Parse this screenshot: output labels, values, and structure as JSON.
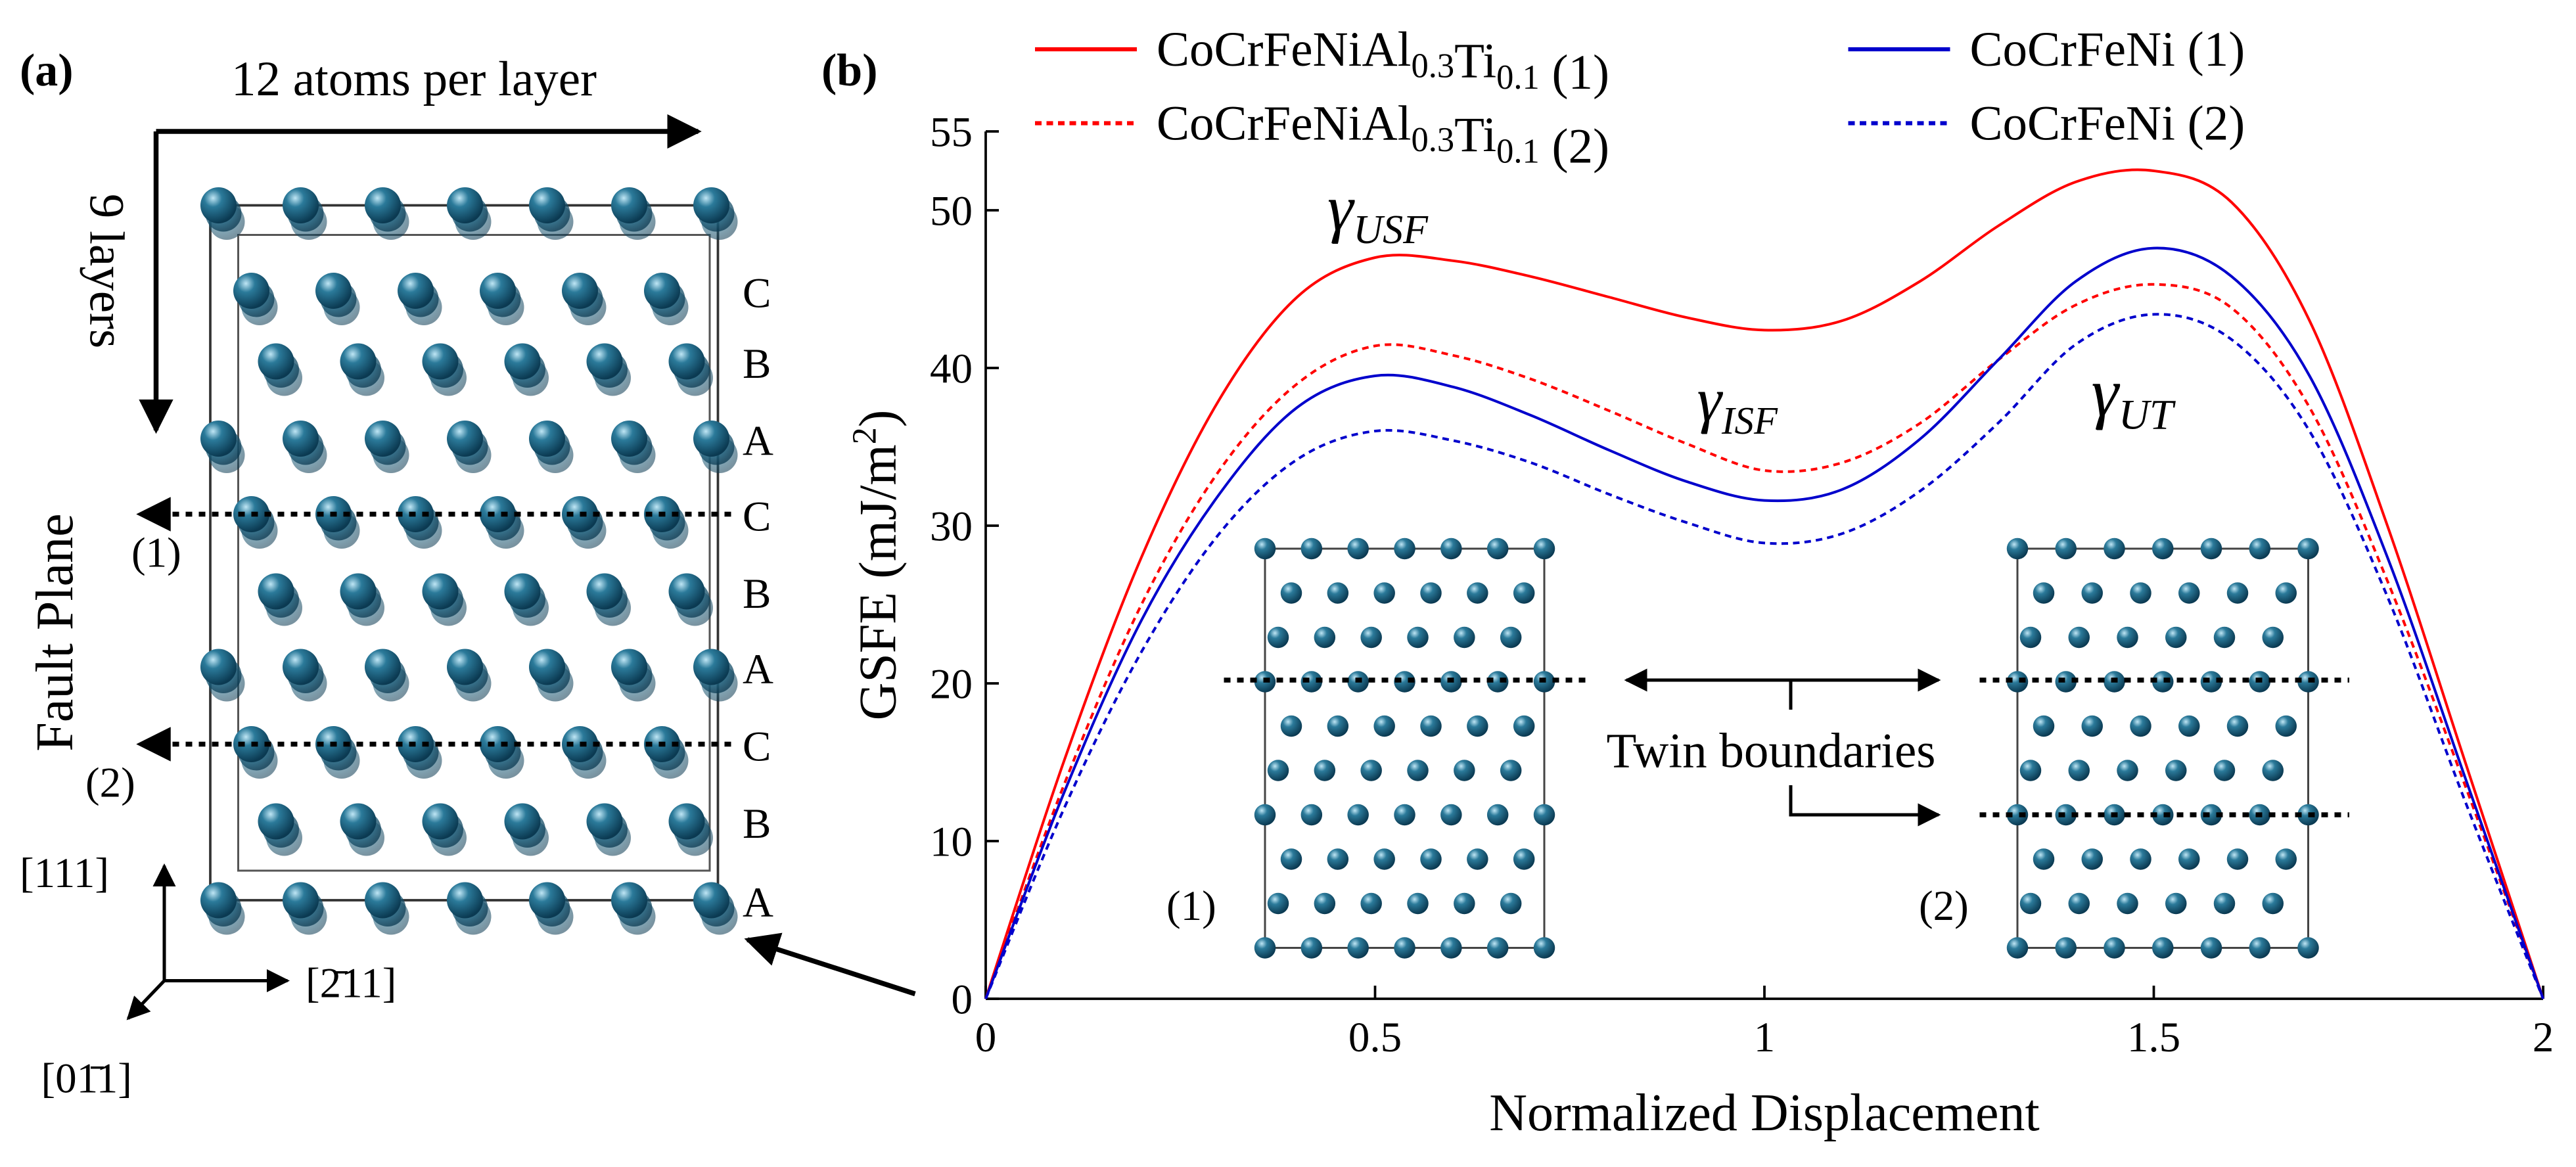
{
  "panel_a": {
    "label": "(a)",
    "top_label": "12 atoms per layer",
    "side_label": "9 layers",
    "fault_label": "Fault Plane",
    "fault_planes": [
      "(1)",
      "(2)"
    ],
    "layers": [
      "C",
      "B",
      "A",
      "C",
      "B",
      "A",
      "C",
      "B",
      "A"
    ],
    "directions": [
      "[111]",
      "[2̄11]",
      "[01̄1]"
    ]
  },
  "chart_data": {
    "type": "line",
    "panel_label": "(b)",
    "x_label": "Normalized Displacement",
    "y_label": "GSFE (mJ/m2)",
    "x": [
      0,
      0.1,
      0.2,
      0.3,
      0.4,
      0.5,
      0.6,
      0.7,
      0.8,
      0.9,
      1.0,
      1.1,
      1.2,
      1.3,
      1.4,
      1.5,
      1.6,
      1.7,
      1.8,
      1.9,
      2.0
    ],
    "series": [
      {
        "name": "CoCrFeNiAl0.3Ti0.1 (1)",
        "color": "#ff0000",
        "dash": false,
        "values": [
          0,
          15,
          28,
          38,
          44.5,
          47,
          46.8,
          45.8,
          44.5,
          43.2,
          42.4,
          43,
          45.5,
          49,
          51.8,
          52.5,
          50.5,
          43,
          30,
          15,
          0
        ]
      },
      {
        "name": "CoCrFeNiAl0.3Ti0.1 (2)",
        "color": "#ff0000",
        "dash": true,
        "values": [
          0,
          13.5,
          25,
          33.5,
          39,
          41.4,
          40.8,
          39.3,
          37.3,
          35.2,
          33.5,
          34,
          36.5,
          40.5,
          44,
          45.3,
          43.8,
          37.5,
          26.5,
          13.5,
          0
        ]
      },
      {
        "name": "CoCrFeNi (1)",
        "color": "#0000cc",
        "dash": false,
        "values": [
          0,
          13,
          24,
          32,
          37.5,
          39.5,
          38.8,
          37,
          34.8,
          32.8,
          31.6,
          32.3,
          35.5,
          40.5,
          45.5,
          47.6,
          45.8,
          39.5,
          28,
          14,
          0
        ]
      },
      {
        "name": "CoCrFeNi (2)",
        "color": "#0000cc",
        "dash": true,
        "values": [
          0,
          12,
          22,
          29.5,
          34.2,
          36,
          35.4,
          34,
          32,
          30.2,
          28.9,
          29.5,
          32.2,
          36.5,
          41.5,
          43.4,
          41.8,
          36,
          25.5,
          12.5,
          0
        ]
      }
    ],
    "xlim": [
      0,
      2
    ],
    "ylim": [
      0,
      55
    ],
    "xticks": [
      0,
      0.5,
      1,
      1.5,
      2
    ],
    "yticks": [
      0,
      10,
      20,
      30,
      40,
      50,
      55
    ],
    "legend": "top",
    "annotations": [
      "γUSF",
      "γISF",
      "γUT"
    ],
    "insets": [
      "(1)",
      "(2)"
    ],
    "inset_note": "Twin boundaries"
  }
}
